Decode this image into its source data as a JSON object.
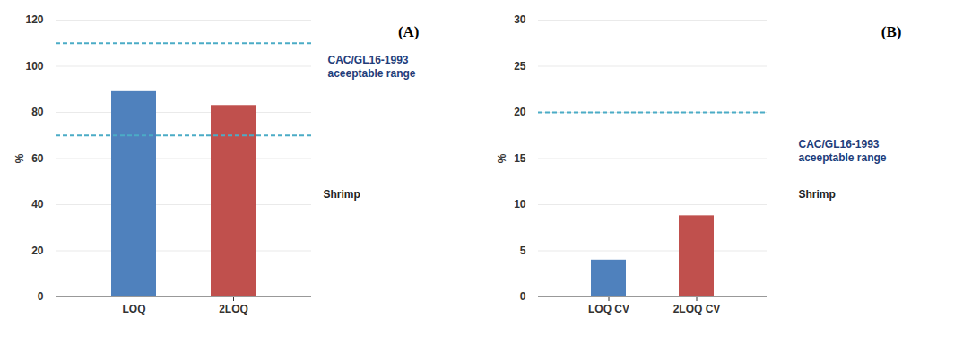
{
  "chart_data": [
    {
      "type": "bar",
      "title": "(A)",
      "categories": [
        "LOQ",
        "2LOQ"
      ],
      "values": [
        89,
        83
      ],
      "colors": [
        "#4f81bd",
        "#c0504d"
      ],
      "ylim": [
        0,
        120
      ],
      "yticks": [
        0,
        20,
        40,
        60,
        80,
        100,
        120
      ],
      "grid": true,
      "y_label": "%",
      "reference_lines": [
        70,
        110
      ],
      "annotations": [
        "CAC/GL16-1993\naceeptable range",
        "Shrimp"
      ]
    },
    {
      "type": "bar",
      "title": "(B)",
      "categories": [
        "LOQ CV",
        "2LOQ CV"
      ],
      "values": [
        4,
        8.8
      ],
      "colors": [
        "#4f81bd",
        "#c0504d"
      ],
      "ylim": [
        0,
        30
      ],
      "yticks": [
        0,
        5,
        10,
        15,
        20,
        25,
        30
      ],
      "grid": true,
      "y_label": "%",
      "reference_lines": [
        20
      ],
      "annotations": [
        "CAC/GL16-1993\naceeptable range",
        "Shrimp"
      ]
    }
  ]
}
